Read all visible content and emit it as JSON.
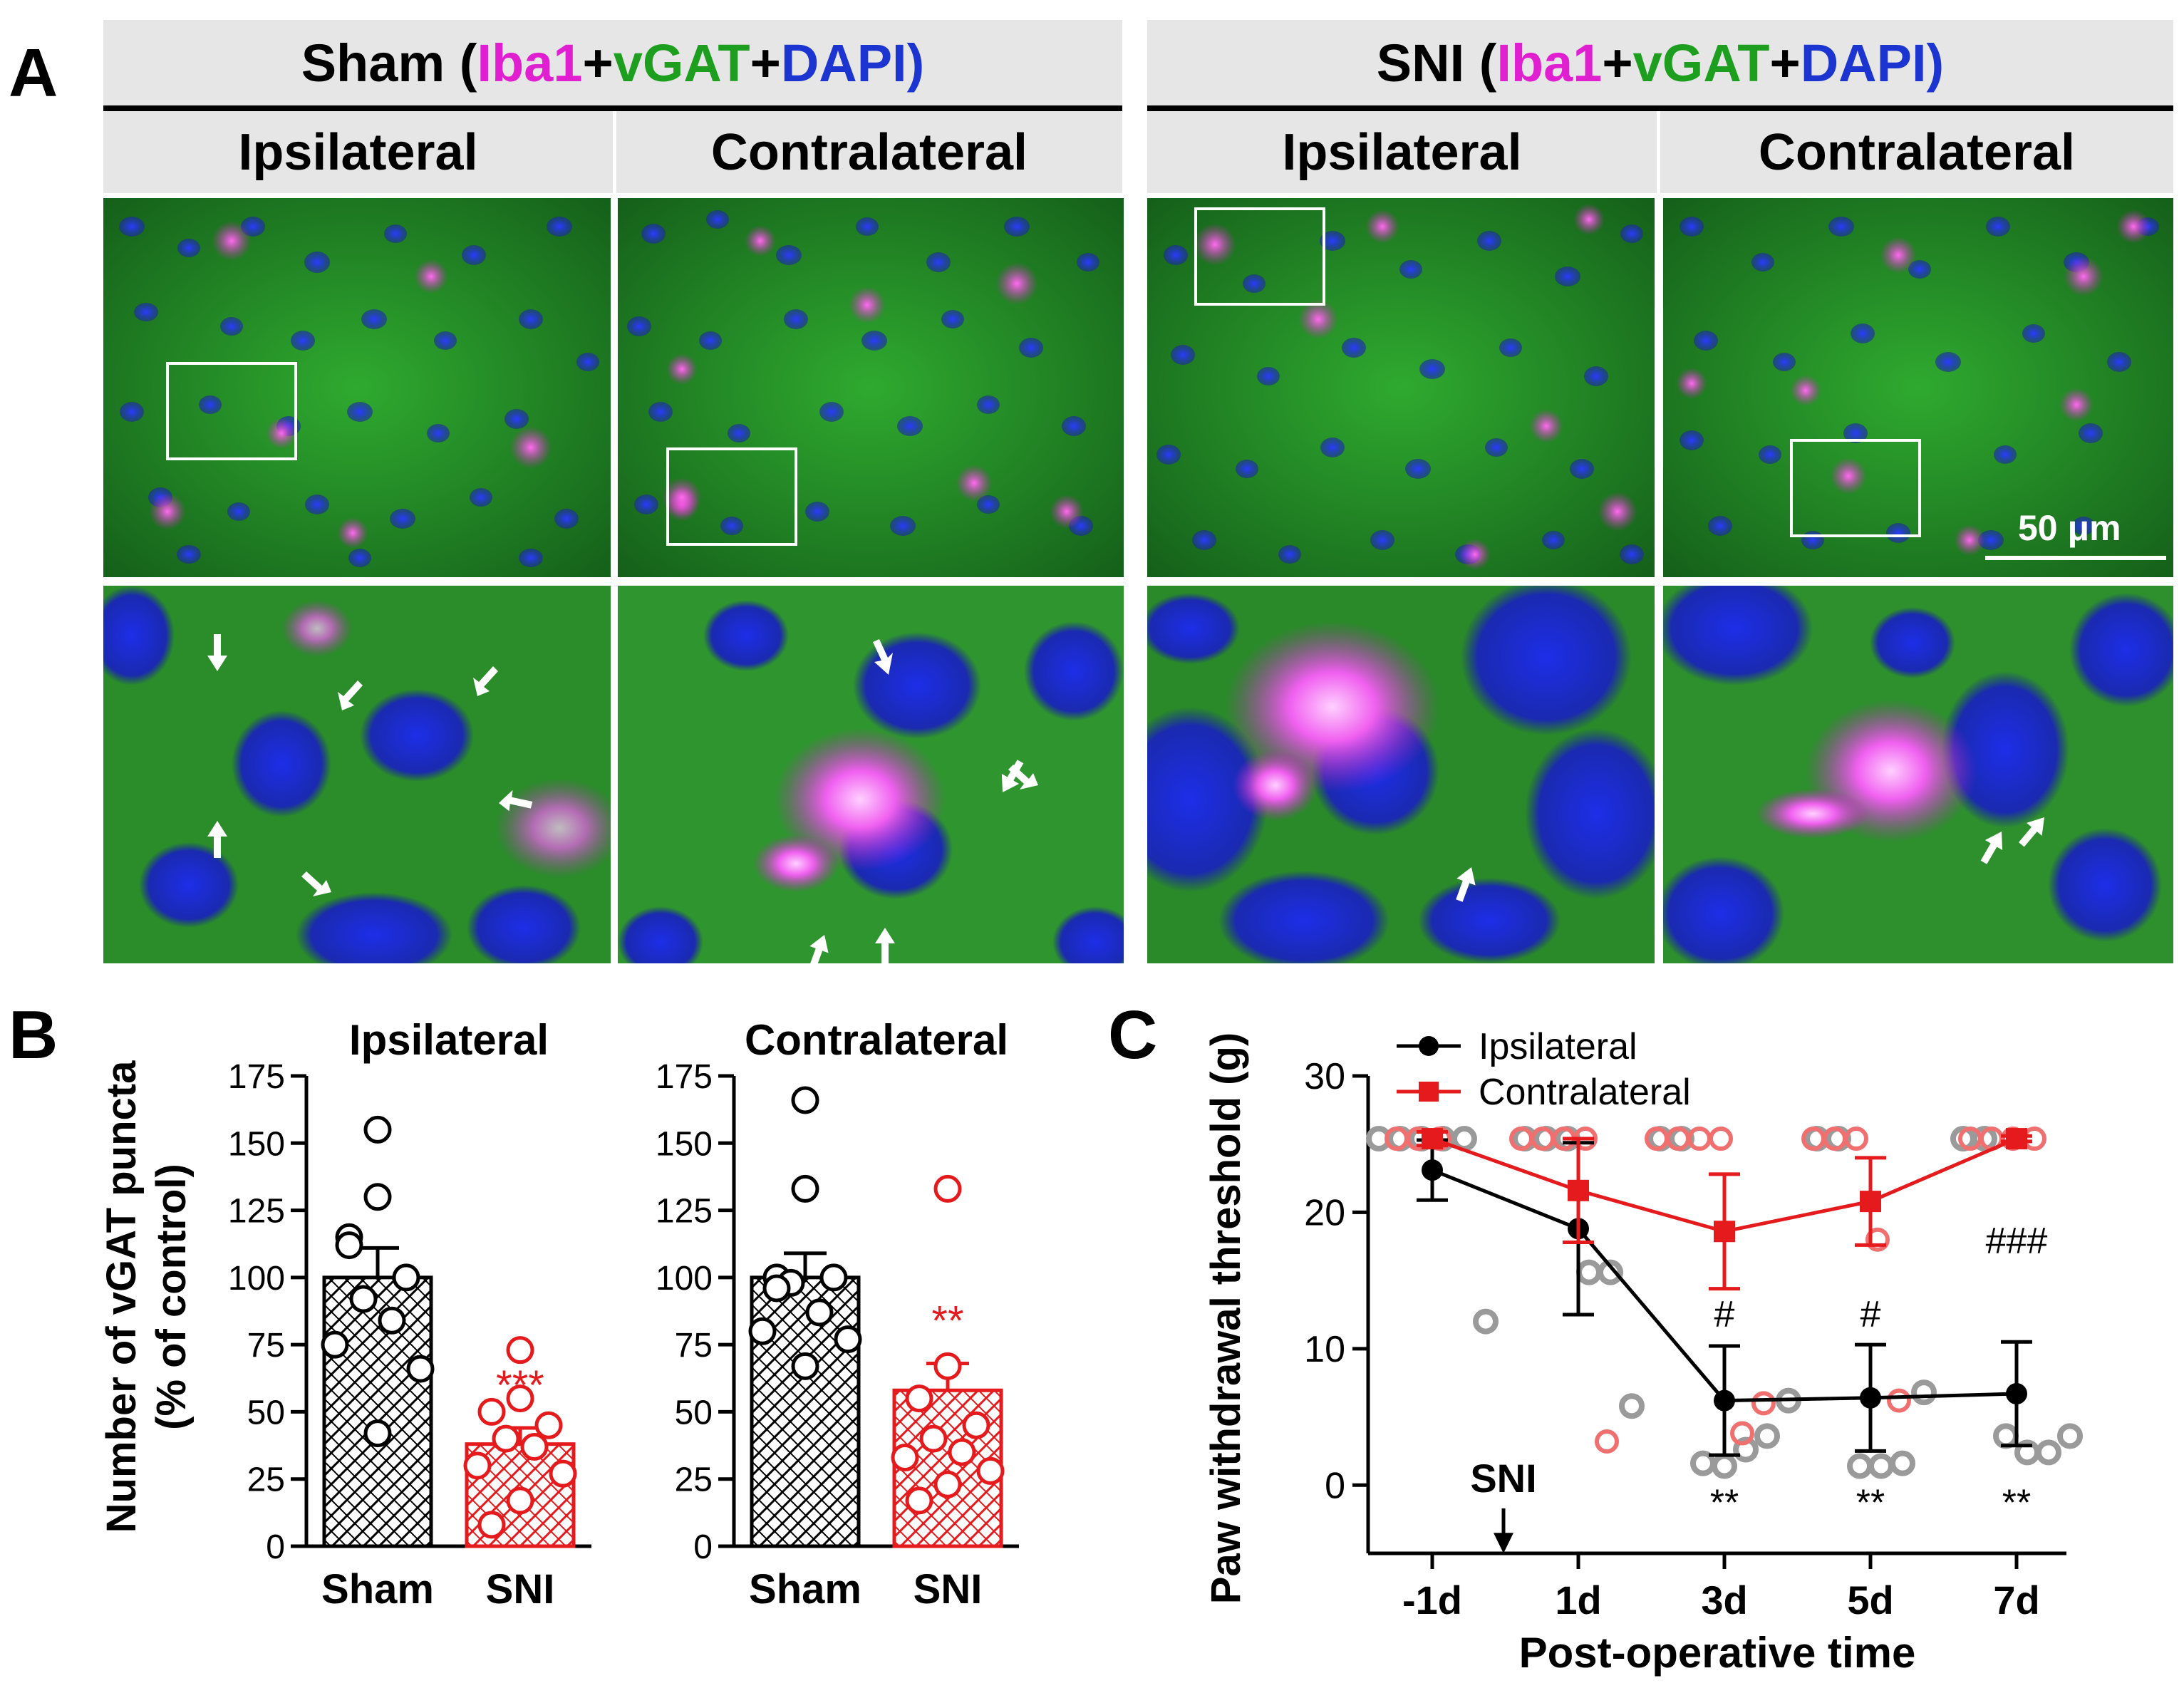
{
  "panel_a": {
    "letter": "A",
    "groups": [
      {
        "name": "Sham",
        "open": " (",
        "iba1": "Iba1",
        "plus1": "+",
        "vgat": "vGAT",
        "plus2": "+",
        "dapi": "DAPI",
        "close": ")"
      },
      {
        "name": "SNI",
        "open": " (",
        "iba1": "Iba1",
        "plus1": "+",
        "vgat": "vGAT",
        "plus2": "+",
        "dapi": "DAPI",
        "close": ")"
      }
    ],
    "sides": [
      "Ipsilateral",
      "Contralateral",
      "Ipsilateral",
      "Contralateral"
    ],
    "scale_bar": "50 μm",
    "colors": {
      "iba1": "#e020d0",
      "vgat": "#1e9e1e",
      "dapi": "#1c34d0"
    }
  },
  "panel_b": {
    "letter": "B",
    "ylabel_line1": "Number of vGAT puncta",
    "ylabel_line2": "(% of control)"
  },
  "panel_c": {
    "letter": "C",
    "snimark": "SNI"
  },
  "chart_data": [
    {
      "type": "bar",
      "title": "Ipsilateral",
      "categories": [
        "Sham",
        "SNI"
      ],
      "values": [
        100,
        38
      ],
      "errors": [
        11,
        6
      ],
      "ylim": [
        0,
        175
      ],
      "yticks": [
        "0",
        "25",
        "50",
        "75",
        "100",
        "125",
        "150",
        "175"
      ],
      "points": [
        [
          155,
          130,
          115,
          100,
          92,
          84,
          75,
          66,
          42,
          112
        ],
        [
          73,
          55,
          50,
          45,
          40,
          37,
          30,
          27,
          17,
          8
        ]
      ],
      "significance": [
        "",
        "***"
      ],
      "colors": [
        "#000000",
        "#e41a1c"
      ]
    },
    {
      "type": "bar",
      "title": "Contralateral",
      "categories": [
        "Sham",
        "SNI"
      ],
      "values": [
        100,
        58
      ],
      "errors": [
        9,
        10
      ],
      "ylim": [
        0,
        175
      ],
      "yticks": [
        "0",
        "25",
        "50",
        "75",
        "100",
        "125",
        "150",
        "175"
      ],
      "points": [
        [
          166,
          133,
          100,
          100,
          98,
          87,
          80,
          77,
          67,
          96
        ],
        [
          133,
          67,
          55,
          45,
          40,
          35,
          33,
          28,
          23,
          17
        ]
      ],
      "significance": [
        "",
        "**"
      ],
      "colors": [
        "#000000",
        "#e41a1c"
      ]
    },
    {
      "type": "line",
      "xlabel": "Post-operative time",
      "ylabel": "Paw withdrawal threshold (g)",
      "categories": [
        "-1d",
        "1d",
        "3d",
        "5d",
        "7d"
      ],
      "ylim": [
        -5,
        30
      ],
      "yticks": [
        "0",
        "10",
        "20",
        "30"
      ],
      "series": [
        {
          "name": "Ipsilateral",
          "values": [
            23.1,
            18.8,
            6.2,
            6.4,
            6.7
          ],
          "errors": [
            2.2,
            6.3,
            4.0,
            3.9,
            3.8
          ],
          "color": "#000000"
        },
        {
          "name": "Contralateral",
          "values": [
            25.4,
            21.6,
            18.6,
            20.8,
            25.4
          ],
          "errors": [
            0.5,
            3.8,
            4.2,
            3.2,
            0.2
          ],
          "color": "#e41a1c"
        }
      ],
      "significance_top": [
        "",
        "",
        "#",
        "#",
        "###"
      ],
      "significance_bottom": [
        "",
        "",
        "**",
        "**",
        "**"
      ]
    }
  ]
}
